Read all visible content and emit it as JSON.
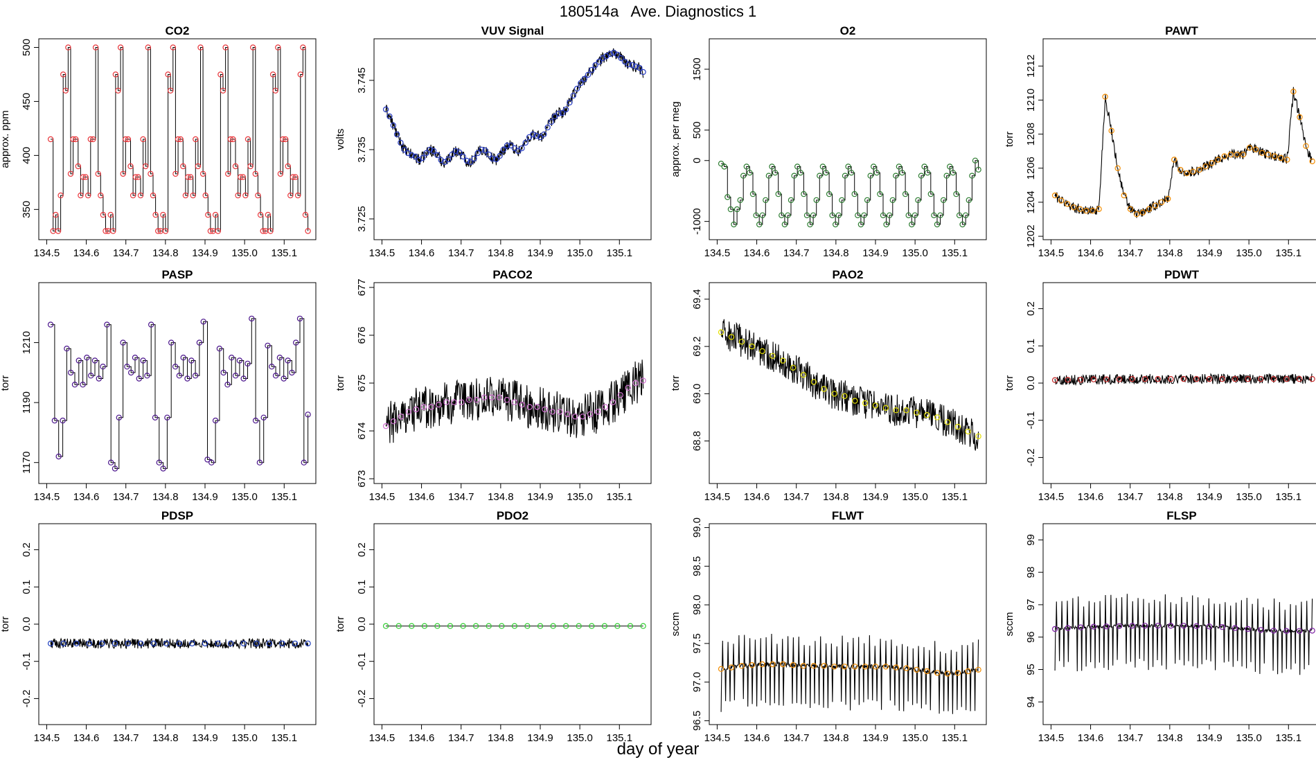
{
  "figure": {
    "title": "180514a   Ave. Diagnostics 1",
    "xlabel": "day of year"
  },
  "chart_data": [
    {
      "type": "line",
      "title": "CO2",
      "ylabel": "approx. ppm",
      "xlim": [
        134.48,
        135.18
      ],
      "ylim": [
        322,
        508
      ],
      "xticks": [
        134.5,
        134.6,
        134.7,
        134.8,
        134.9,
        135.0,
        135.1
      ],
      "xtick_labels": [
        "134.5",
        "134.6",
        "134.7",
        "134.8",
        "134.9",
        "135.0",
        "135.1"
      ],
      "yticks": [
        350,
        400,
        450,
        500
      ],
      "ytick_labels": [
        "350",
        "400",
        "450",
        "500"
      ],
      "series": [
        {
          "name": "CO2",
          "marker_color": "#e8383d",
          "values": [
            415,
            330,
            345,
            330,
            363,
            475,
            460,
            500,
            383,
            415,
            415,
            390,
            363,
            380,
            380,
            363,
            415,
            415,
            500,
            383,
            363,
            345,
            330,
            330,
            345,
            330,
            475,
            460,
            500,
            383,
            415,
            415,
            390,
            363,
            380,
            380,
            363,
            415,
            390,
            500,
            383,
            363,
            345,
            330,
            330,
            345,
            330,
            475,
            460,
            500,
            383,
            415,
            415,
            390,
            363,
            380,
            380,
            363,
            415,
            390,
            500,
            383,
            363,
            345,
            330,
            330,
            345,
            330,
            475,
            460,
            500,
            383,
            415,
            415,
            390,
            363,
            380,
            380,
            363,
            415,
            390,
            500,
            383,
            363,
            345,
            330,
            330,
            345,
            330,
            475,
            460,
            500,
            383,
            415,
            415,
            390,
            363,
            380,
            380,
            363,
            475,
            500,
            345,
            330
          ]
        }
      ]
    },
    {
      "type": "line",
      "title": "VUV Signal",
      "ylabel": "volts",
      "xlim": [
        134.48,
        135.18
      ],
      "ylim": [
        3.722,
        3.751
      ],
      "xticks": [
        134.5,
        134.6,
        134.7,
        134.8,
        134.9,
        135.0,
        135.1
      ],
      "xtick_labels": [
        "134.5",
        "134.6",
        "134.7",
        "134.8",
        "134.9",
        "135.0",
        "135.1"
      ],
      "yticks": [
        3.725,
        3.735,
        3.745
      ],
      "ytick_labels": [
        "3.725",
        "3.735",
        "3.745"
      ],
      "series": [
        {
          "name": "VUV Signal",
          "marker_color": "#2b3fc4",
          "values": [
            3.7408,
            3.7398,
            3.7385,
            3.7372,
            3.736,
            3.735,
            3.7345,
            3.7342,
            3.734,
            3.7335,
            3.7338,
            3.7345,
            3.735,
            3.7348,
            3.7342,
            3.7335,
            3.7332,
            3.7336,
            3.7343,
            3.7348,
            3.7346,
            3.734,
            3.7334,
            3.7332,
            3.7337,
            3.7345,
            3.735,
            3.7349,
            3.7343,
            3.7337,
            3.7336,
            3.7341,
            3.735,
            3.7356,
            3.7356,
            3.7352,
            3.7348,
            3.7352,
            3.736,
            3.7368,
            3.7372,
            3.737,
            3.7368,
            3.7372,
            3.7382,
            3.739,
            3.7398,
            3.7402,
            3.7403,
            3.7408,
            3.7418,
            3.7428,
            3.7438,
            3.7446,
            3.7452,
            3.7458,
            3.7465,
            3.7472,
            3.7477,
            3.7482,
            3.7485,
            3.7488,
            3.749,
            3.7487,
            3.7482,
            3.7477,
            3.7473,
            3.7472,
            3.747,
            3.7468,
            3.7462
          ]
        }
      ]
    },
    {
      "type": "line",
      "title": "O2",
      "ylabel": "approx. per meg",
      "xlim": [
        134.48,
        135.18
      ],
      "ylim": [
        -1300,
        2000
      ],
      "xticks": [
        134.5,
        134.6,
        134.7,
        134.8,
        134.9,
        135.0,
        135.1
      ],
      "xtick_labels": [
        "134.5",
        "134.6",
        "134.7",
        "134.8",
        "134.9",
        "135.0",
        "135.1"
      ],
      "yticks": [
        -1000,
        0,
        500,
        1500
      ],
      "ytick_labels": [
        "-1000",
        "0",
        "500",
        "1500"
      ],
      "series": [
        {
          "name": "O2",
          "marker_color": "#2e7d32",
          "values": [
            -50,
            -100,
            -600,
            -800,
            -1050,
            -800,
            -650,
            -250,
            -100,
            -200,
            -550,
            -900,
            -1050,
            -900,
            -650,
            -250,
            -100,
            -200,
            -550,
            -900,
            -1050,
            -900,
            -650,
            -250,
            -100,
            -200,
            -550,
            -900,
            -1050,
            -900,
            -650,
            -250,
            -100,
            -200,
            -550,
            -900,
            -1050,
            -900,
            -650,
            -250,
            -100,
            -200,
            -550,
            -900,
            -1050,
            -900,
            -650,
            -250,
            -100,
            -200,
            -550,
            -900,
            -1050,
            -900,
            -650,
            -250,
            -100,
            -200,
            -550,
            -900,
            -1050,
            -900,
            -650,
            -250,
            -100,
            -200,
            -550,
            -900,
            -1050,
            -900,
            -650,
            -250,
            -100,
            -200,
            -550,
            -900,
            -1050,
            -900,
            -650,
            -250,
            0,
            -150
          ]
        }
      ]
    },
    {
      "type": "line",
      "title": "PAWT",
      "ylabel": "torr",
      "xlim": [
        134.48,
        135.18
      ],
      "ylim": [
        1201.8,
        1213.6
      ],
      "xticks": [
        134.5,
        134.6,
        134.7,
        134.8,
        134.9,
        135.0,
        135.1
      ],
      "xtick_labels": [
        "134.5",
        "134.6",
        "134.7",
        "134.8",
        "134.9",
        "135.0",
        "135.1"
      ],
      "yticks": [
        1202,
        1204,
        1206,
        1208,
        1210,
        1212
      ],
      "ytick_labels": [
        "1202",
        "1204",
        "1206",
        "1208",
        "1210",
        "1212"
      ],
      "series": [
        {
          "name": "PAWT",
          "marker_color": "#f28c00",
          "values": [
            1204.4,
            1204.1,
            1203.9,
            1203.7,
            1203.6,
            1203.5,
            1203.5,
            1203.6,
            1210.2,
            1208.2,
            1206.0,
            1204.4,
            1203.6,
            1203.3,
            1203.4,
            1203.6,
            1203.8,
            1204.0,
            1204.2,
            1206.5,
            1205.9,
            1205.7,
            1205.8,
            1205.9,
            1206.1,
            1206.3,
            1206.5,
            1206.7,
            1206.8,
            1206.8,
            1206.8,
            1207.2,
            1207.1,
            1206.9,
            1206.8,
            1206.7,
            1206.6,
            1206.5,
            1210.5,
            1209.0,
            1207.3,
            1206.4
          ]
        }
      ]
    },
    {
      "type": "line",
      "title": "PASP",
      "ylabel": "torr",
      "xlim": [
        134.48,
        135.18
      ],
      "ylim": [
        1163,
        1230
      ],
      "xticks": [
        134.5,
        134.6,
        134.7,
        134.8,
        134.9,
        135.0,
        135.1
      ],
      "xtick_labels": [
        "134.5",
        "134.6",
        "134.7",
        "134.8",
        "134.9",
        "135.0",
        "135.1"
      ],
      "yticks": [
        1170,
        1190,
        1210
      ],
      "ytick_labels": [
        "1170",
        "1190",
        "1210"
      ],
      "series": [
        {
          "name": "PASP",
          "marker_color": "#4a148c",
          "values": [
            1216,
            1184,
            1172,
            1184,
            1208,
            1200,
            1196,
            1204,
            1196,
            1205,
            1199,
            1204,
            1198,
            1202,
            1216,
            1170,
            1168,
            1185,
            1210,
            1202,
            1200,
            1205,
            1198,
            1204,
            1199,
            1216,
            1185,
            1170,
            1168,
            1185,
            1210,
            1202,
            1199,
            1205,
            1198,
            1204,
            1199,
            1210,
            1217,
            1171,
            1170,
            1184,
            1208,
            1200,
            1196,
            1205,
            1199,
            1204,
            1198,
            1203,
            1218,
            1184,
            1170,
            1185,
            1209,
            1202,
            1199,
            1205,
            1198,
            1204,
            1200,
            1210,
            1218,
            1170,
            1186
          ]
        }
      ]
    },
    {
      "type": "line",
      "title": "PACO2",
      "ylabel": "torr",
      "xlim": [
        134.48,
        135.18
      ],
      "ylim": [
        672.9,
        677.1
      ],
      "xticks": [
        134.5,
        134.6,
        134.7,
        134.8,
        134.9,
        135.0,
        135.1
      ],
      "xtick_labels": [
        "134.5",
        "134.6",
        "134.7",
        "134.8",
        "134.9",
        "135.0",
        "135.1"
      ],
      "yticks": [
        673,
        674,
        675,
        676,
        677
      ],
      "ytick_labels": [
        "673",
        "674",
        "675",
        "676",
        "677"
      ],
      "series": [
        {
          "name": "PACO2",
          "marker_color": "#d070d0",
          "values": [
            674.1,
            674.2,
            674.3,
            674.4,
            674.45,
            674.5,
            674.5,
            674.55,
            674.6,
            674.6,
            674.6,
            674.65,
            674.65,
            674.7,
            674.7,
            674.7,
            674.65,
            674.6,
            674.55,
            674.5,
            674.5,
            674.45,
            674.4,
            674.4,
            674.35,
            674.3,
            674.3,
            674.35,
            674.4,
            674.5,
            674.6,
            674.75,
            674.9,
            675.0,
            675.05
          ]
        }
      ]
    },
    {
      "type": "line",
      "title": "PAO2",
      "ylabel": "torr",
      "xlim": [
        134.48,
        135.18
      ],
      "ylim": [
        68.62,
        69.47
      ],
      "xticks": [
        134.5,
        134.6,
        134.7,
        134.8,
        134.9,
        135.0,
        135.1
      ],
      "xtick_labels": [
        "134.5",
        "134.6",
        "134.7",
        "134.8",
        "134.9",
        "135.0",
        "135.1"
      ],
      "yticks": [
        68.8,
        69.0,
        69.2,
        69.4
      ],
      "ytick_labels": [
        "68.8",
        "69.0",
        "69.2",
        "69.4"
      ],
      "series": [
        {
          "name": "PAO2",
          "marker_color": "#e4e000",
          "values": [
            69.26,
            69.24,
            69.22,
            69.2,
            69.18,
            69.16,
            69.14,
            69.11,
            69.08,
            69.05,
            69.02,
            69.0,
            68.99,
            68.97,
            68.96,
            68.95,
            68.94,
            68.93,
            68.93,
            68.92,
            68.91,
            68.9,
            68.88,
            68.86,
            68.84,
            68.82
          ]
        }
      ]
    },
    {
      "type": "line",
      "title": "PDWT",
      "ylabel": "torr",
      "xlim": [
        134.48,
        135.18
      ],
      "ylim": [
        -0.27,
        0.27
      ],
      "xticks": [
        134.5,
        134.6,
        134.7,
        134.8,
        134.9,
        135.0,
        135.1
      ],
      "xtick_labels": [
        "134.5",
        "134.6",
        "134.7",
        "134.8",
        "134.9",
        "135.0",
        "135.1"
      ],
      "yticks": [
        -0.2,
        -0.1,
        0.0,
        0.1,
        0.2
      ],
      "ytick_labels": [
        "-0.2",
        "-0.1",
        "0.0",
        "0.1",
        "0.2"
      ],
      "series": [
        {
          "name": "PDWT",
          "marker_color": "#c62828",
          "values": [
            0.008,
            0.009,
            0.009,
            0.01,
            0.01,
            0.01,
            0.011,
            0.011,
            0.011,
            0.011,
            0.011,
            0.011,
            0.011,
            0.011,
            0.011,
            0.011,
            0.011,
            0.011,
            0.011,
            0.011,
            0.011
          ]
        }
      ]
    },
    {
      "type": "line",
      "title": "PDSP",
      "ylabel": "torr",
      "xlim": [
        134.48,
        135.18
      ],
      "ylim": [
        -0.27,
        0.27
      ],
      "xticks": [
        134.5,
        134.6,
        134.7,
        134.8,
        134.9,
        135.0,
        135.1
      ],
      "xtick_labels": [
        "134.5",
        "134.6",
        "134.7",
        "134.8",
        "134.9",
        "135.0",
        "135.1"
      ],
      "yticks": [
        -0.2,
        -0.1,
        0.0,
        0.1,
        0.2
      ],
      "ytick_labels": [
        "-0.2",
        "-0.1",
        "0.0",
        "0.1",
        "0.2"
      ],
      "series": [
        {
          "name": "PDSP",
          "marker_color": "#1e3fbf",
          "values": [
            -0.052,
            -0.052,
            -0.052,
            -0.052,
            -0.052,
            -0.052,
            -0.052,
            -0.052,
            -0.052,
            -0.052,
            -0.052,
            -0.052,
            -0.052,
            -0.052,
            -0.052,
            -0.052,
            -0.052,
            -0.052,
            -0.052,
            -0.052,
            -0.052
          ]
        }
      ]
    },
    {
      "type": "line",
      "title": "PDO2",
      "ylabel": "torr",
      "xlim": [
        134.48,
        135.18
      ],
      "ylim": [
        -0.27,
        0.27
      ],
      "xticks": [
        134.5,
        134.6,
        134.7,
        134.8,
        134.9,
        135.0,
        135.1
      ],
      "xtick_labels": [
        "134.5",
        "134.6",
        "134.7",
        "134.8",
        "134.9",
        "135.0",
        "135.1"
      ],
      "yticks": [
        -0.2,
        -0.1,
        0.0,
        0.1,
        0.2
      ],
      "ytick_labels": [
        "-0.2",
        "-0.1",
        "0.0",
        "0.1",
        "0.2"
      ],
      "series": [
        {
          "name": "PDO2",
          "marker_color": "#32cd32",
          "values": [
            -0.005,
            -0.005,
            -0.005,
            -0.005,
            -0.005,
            -0.005,
            -0.005,
            -0.005,
            -0.005,
            -0.005,
            -0.005,
            -0.005,
            -0.005,
            -0.005,
            -0.005,
            -0.005,
            -0.005,
            -0.005,
            -0.005,
            -0.005,
            -0.005
          ]
        }
      ]
    },
    {
      "type": "line",
      "title": "FLWT",
      "ylabel": "sccm",
      "xlim": [
        134.48,
        135.18
      ],
      "ylim": [
        96.45,
        99.05
      ],
      "xticks": [
        134.5,
        134.6,
        134.7,
        134.8,
        134.9,
        135.0,
        135.1
      ],
      "xtick_labels": [
        "134.5",
        "134.6",
        "134.7",
        "134.8",
        "134.9",
        "135.0",
        "135.1"
      ],
      "yticks": [
        96.5,
        97.0,
        97.5,
        98.0,
        98.5,
        99.0
      ],
      "ytick_labels": [
        "96.5",
        "97.0",
        "97.5",
        "98.0",
        "98.5",
        "99.0"
      ],
      "series": [
        {
          "name": "FLWT",
          "marker_color": "#f28c00",
          "values": [
            97.17,
            97.19,
            97.21,
            97.22,
            97.23,
            97.23,
            97.23,
            97.22,
            97.21,
            97.21,
            97.21,
            97.2,
            97.2,
            97.2,
            97.2,
            97.2,
            97.2,
            97.19,
            97.18,
            97.16,
            97.14,
            97.12,
            97.11,
            97.12,
            97.14,
            97.16
          ]
        }
      ]
    },
    {
      "type": "line",
      "title": "FLSP",
      "ylabel": "sccm",
      "xlim": [
        134.48,
        135.18
      ],
      "ylim": [
        93.3,
        99.5
      ],
      "xticks": [
        134.5,
        134.6,
        134.7,
        134.8,
        134.9,
        135.0,
        135.1
      ],
      "xtick_labels": [
        "134.5",
        "134.6",
        "134.7",
        "134.8",
        "134.9",
        "135.0",
        "135.1"
      ],
      "yticks": [
        94,
        95,
        96,
        97,
        98,
        99
      ],
      "ytick_labels": [
        "94",
        "95",
        "96",
        "97",
        "98",
        "99"
      ],
      "series": [
        {
          "name": "FLSP",
          "marker_color": "#7b1fa2",
          "values": [
            96.25,
            96.28,
            96.3,
            96.32,
            96.33,
            96.34,
            96.35,
            96.35,
            96.35,
            96.35,
            96.35,
            96.34,
            96.33,
            96.31,
            96.28,
            96.25,
            96.22,
            96.2,
            96.19,
            96.19,
            96.2
          ]
        }
      ]
    }
  ]
}
